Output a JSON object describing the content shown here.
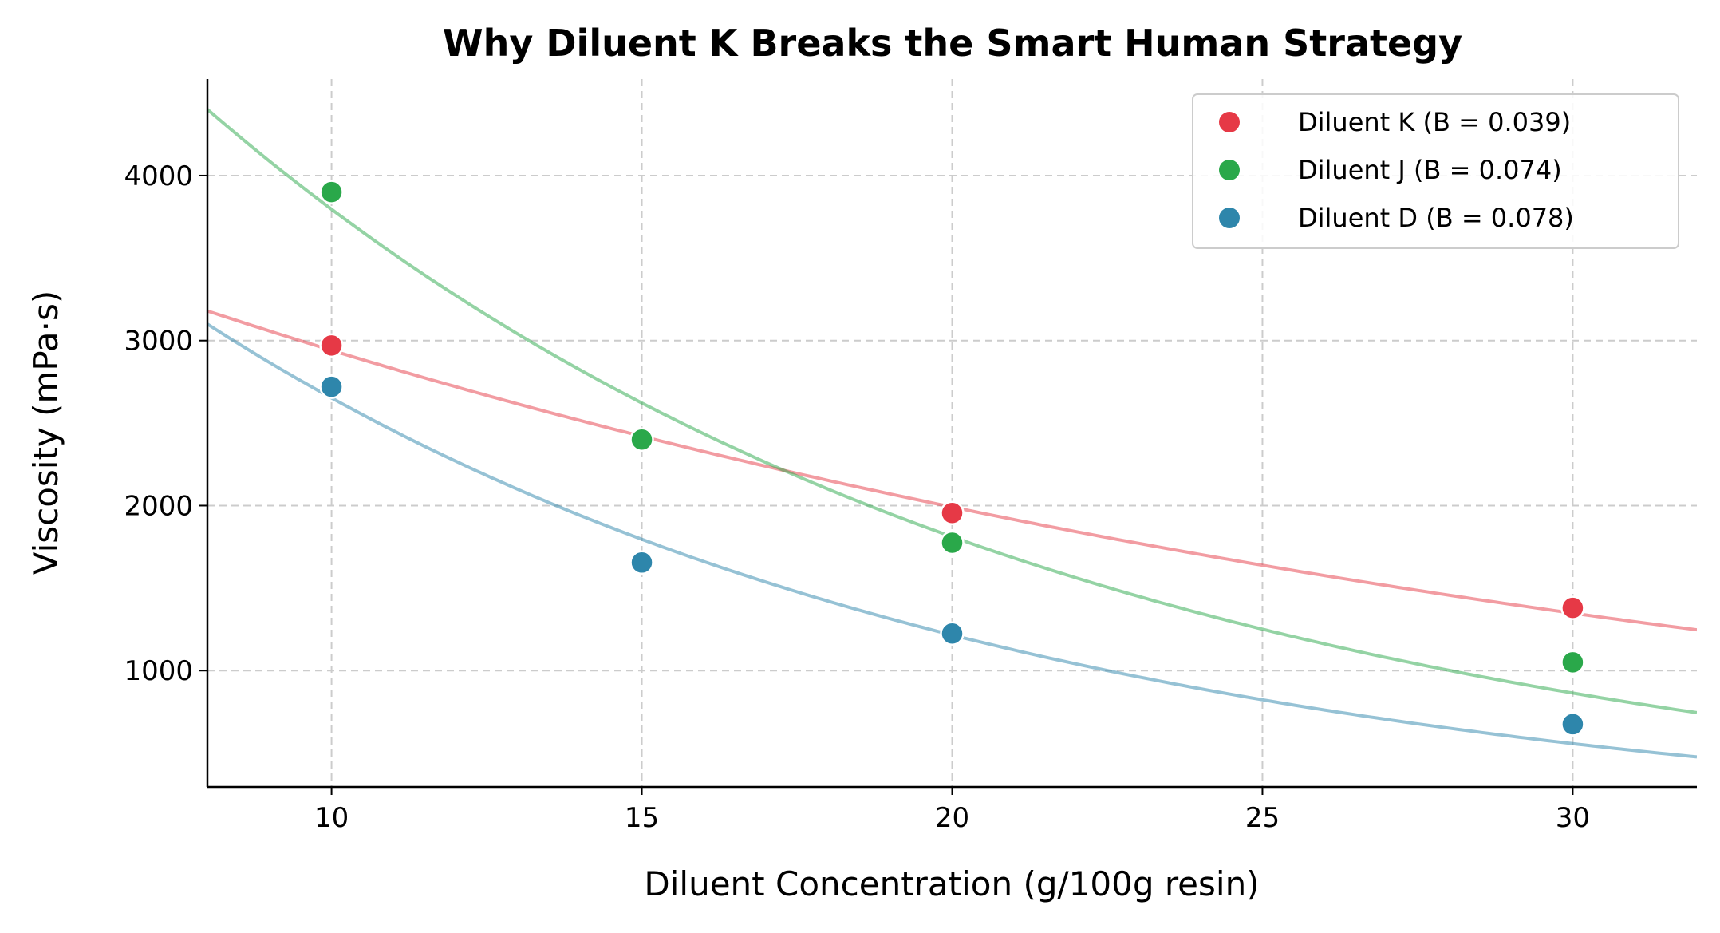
{
  "chart_data": {
    "type": "scatter",
    "title": "Why Diluent K Breaks the Smart Human Strategy",
    "xlabel": "Diluent Concentration (g/100g resin)",
    "ylabel": "Viscosity (mPa·s)",
    "xlim": [
      8,
      32
    ],
    "ylim": [
      295,
      4585
    ],
    "xticks": [
      10,
      15,
      20,
      25,
      30
    ],
    "yticks": [
      1000,
      2000,
      3000,
      4000
    ],
    "grid": true,
    "legend_position": "top-right",
    "series": [
      {
        "name": "Diluent K (B = 0.039)",
        "color": "#e63946",
        "x": [
          10,
          20,
          30
        ],
        "y": [
          2970,
          1955,
          1380
        ],
        "fit": {
          "model": "A*exp(-B*x)",
          "A": 4344,
          "B": 0.039
        }
      },
      {
        "name": "Diluent J (B = 0.074)",
        "color": "#2aa84a",
        "x": [
          10,
          15,
          20,
          30
        ],
        "y": [
          3900,
          2400,
          1775,
          1050
        ],
        "fit": {
          "model": "A*exp(-B*x)",
          "A": 7956,
          "B": 0.074
        }
      },
      {
        "name": "Diluent D (B = 0.078)",
        "color": "#2e86ab",
        "x": [
          10,
          15,
          20,
          30
        ],
        "y": [
          2720,
          1655,
          1225,
          675
        ],
        "fit": {
          "model": "A*exp(-B*x)",
          "A": 5786,
          "B": 0.078
        }
      }
    ]
  }
}
